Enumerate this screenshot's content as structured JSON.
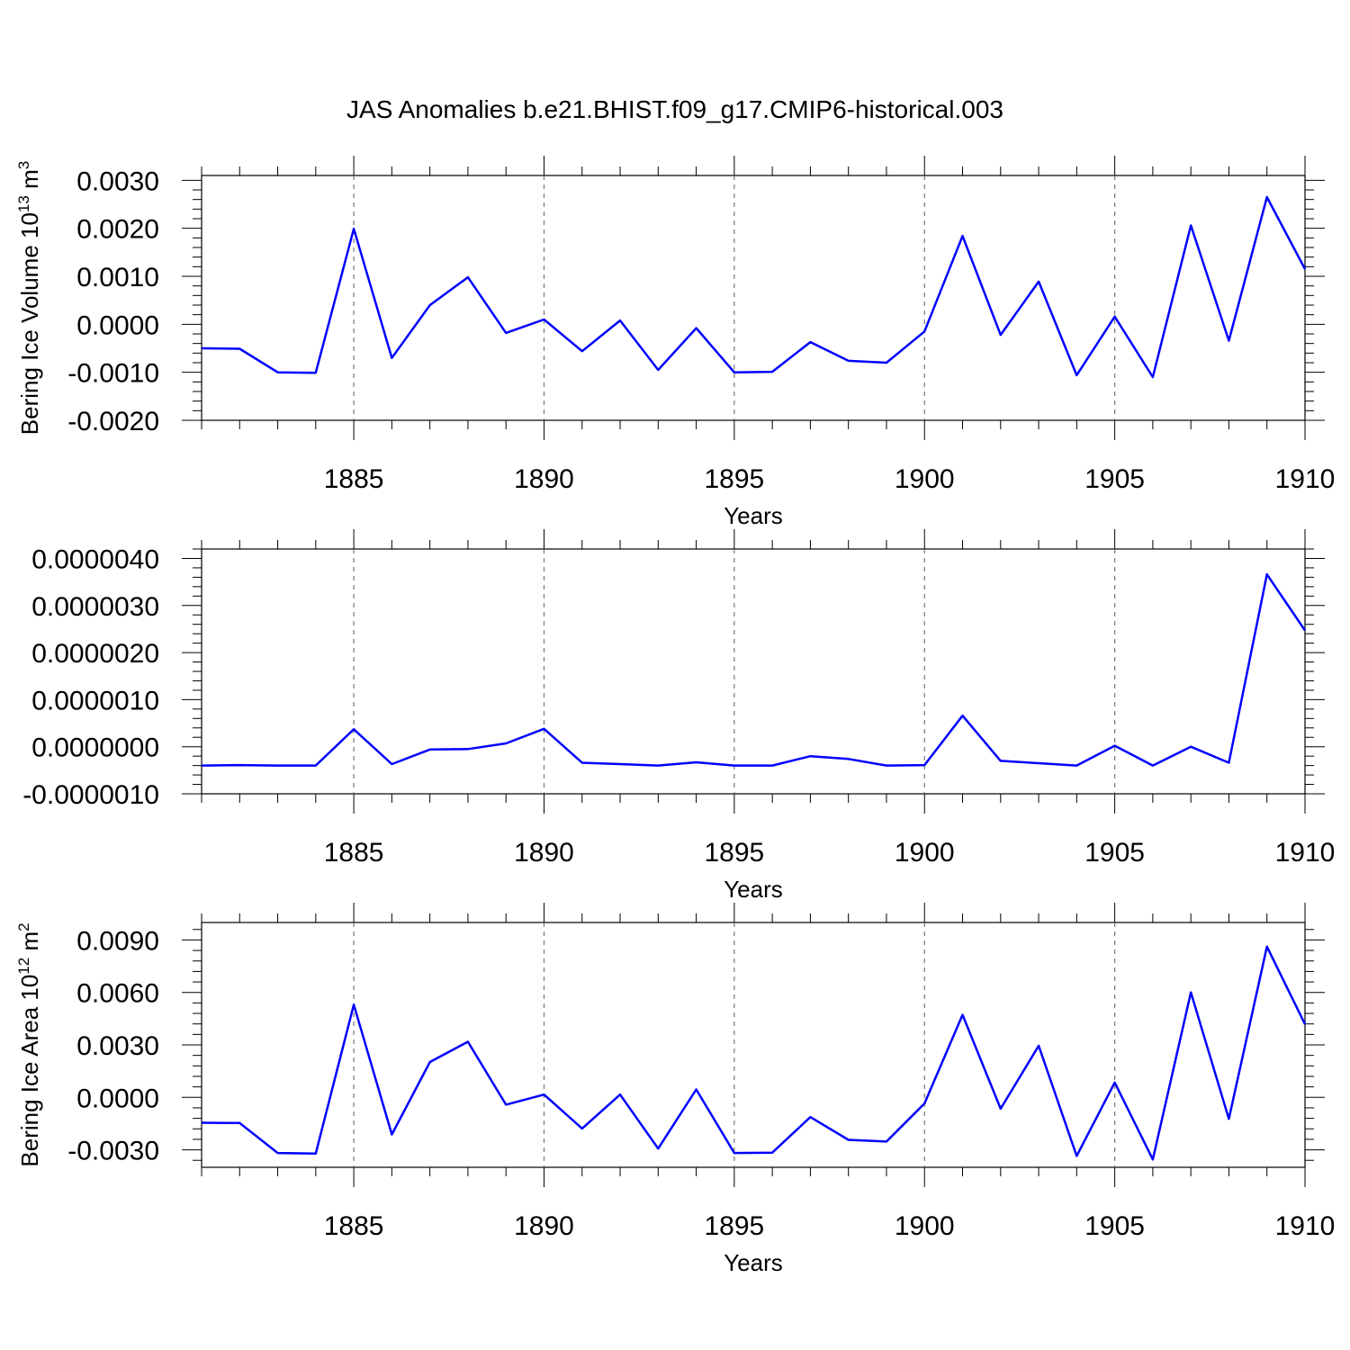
{
  "figure": {
    "title": "JAS Anomalies b.e21.BHIST.f09_g17.CMIP6-historical.003"
  },
  "colors": {
    "series": "#0000ff",
    "axis": "#000000",
    "grid": "#777777"
  },
  "chart_data": [
    {
      "type": "line",
      "title": "JAS Anomalies b.e21.BHIST.f09_g17.CMIP6-historical.003",
      "xlabel": "Years",
      "ylabel_main": "Bering Ice Volume 10",
      "ylabel_exp": "13",
      "ylabel_unit": " m",
      "ylabel_unit_exp": "3",
      "xlim": [
        1881,
        1910
      ],
      "ylim": [
        -0.002,
        0.0031
      ],
      "x_ticks": [
        1885,
        1890,
        1895,
        1900,
        1905,
        1910
      ],
      "x_tick_labels": [
        "1885",
        "1890",
        "1895",
        "1900",
        "1905",
        "1910"
      ],
      "y_ticks": [
        -0.002,
        -0.001,
        0.0,
        0.001,
        0.002,
        0.003
      ],
      "y_tick_labels": [
        "-0.0020",
        "-0.0010",
        "0.0000",
        "0.0010",
        "0.0020",
        "0.0030"
      ],
      "grid": "vertical dashed at major x ticks",
      "x": [
        1881,
        1882,
        1883,
        1884,
        1885,
        1886,
        1887,
        1888,
        1889,
        1890,
        1891,
        1892,
        1893,
        1894,
        1895,
        1896,
        1897,
        1898,
        1899,
        1900,
        1901,
        1902,
        1903,
        1904,
        1905,
        1906,
        1907,
        1908,
        1909,
        1910
      ],
      "series": [
        {
          "name": "Bering Ice Volume",
          "values": [
            -0.0005,
            -0.00051,
            -0.001,
            -0.00101,
            0.00199,
            -0.0007,
            0.0004,
            0.00098,
            -0.00018,
            0.0001,
            -0.00056,
            8e-05,
            -0.00095,
            -8e-05,
            -0.001,
            -0.00099,
            -0.00037,
            -0.00076,
            -0.0008,
            -0.00015,
            0.00184,
            -0.00022,
            0.00089,
            -0.00106,
            0.00016,
            -0.0011,
            0.00206,
            -0.00034,
            0.00265,
            0.00115
          ]
        }
      ]
    },
    {
      "type": "line",
      "xlabel": "Years",
      "xlim": [
        1881,
        1910
      ],
      "ylim": [
        -1e-06,
        4.2e-06
      ],
      "x_ticks": [
        1885,
        1890,
        1895,
        1900,
        1905,
        1910
      ],
      "x_tick_labels": [
        "1885",
        "1890",
        "1895",
        "1900",
        "1905",
        "1910"
      ],
      "y_ticks": [
        -1e-06,
        0.0,
        1e-06,
        2e-06,
        3e-06,
        4e-06
      ],
      "y_tick_labels": [
        "-0.0000010",
        "0.0000000",
        "0.0000010",
        "0.0000020",
        "0.0000030",
        "0.0000040"
      ],
      "grid": "vertical dashed at major x ticks",
      "x": [
        1881,
        1882,
        1883,
        1884,
        1885,
        1886,
        1887,
        1888,
        1889,
        1890,
        1891,
        1892,
        1893,
        1894,
        1895,
        1896,
        1897,
        1898,
        1899,
        1900,
        1901,
        1902,
        1903,
        1904,
        1905,
        1906,
        1907,
        1908,
        1909,
        1910
      ],
      "series": [
        {
          "name": "series",
          "values": [
            -4e-07,
            -3.9e-07,
            -4e-07,
            -4e-07,
            3.7e-07,
            -3.7e-07,
            -6e-08,
            -5e-08,
            7e-08,
            3.8e-07,
            -3.4e-07,
            -3.7e-07,
            -4e-07,
            -3.3e-07,
            -4e-07,
            -4e-07,
            -2e-07,
            -2.6e-07,
            -4e-07,
            -3.9e-07,
            6.6e-07,
            -3e-07,
            -3.5e-07,
            -4e-07,
            2e-08,
            -4e-07,
            0.0,
            -3.4e-07,
            3.66e-06,
            2.47e-06
          ]
        }
      ]
    },
    {
      "type": "line",
      "xlabel": "Years",
      "ylabel_main": "Bering Ice Area 10",
      "ylabel_exp": "12",
      "ylabel_unit": " m",
      "ylabel_unit_exp": "2",
      "xlim": [
        1881,
        1910
      ],
      "ylim": [
        -0.004,
        0.01
      ],
      "x_ticks": [
        1885,
        1890,
        1895,
        1900,
        1905,
        1910
      ],
      "x_tick_labels": [
        "1885",
        "1890",
        "1895",
        "1900",
        "1905",
        "1910"
      ],
      "y_ticks": [
        -0.003,
        0.0,
        0.003,
        0.006,
        0.009
      ],
      "y_tick_labels": [
        "-0.0030",
        "0.0000",
        "0.0030",
        "0.0060",
        "0.0090"
      ],
      "grid": "vertical dashed at major x ticks",
      "x": [
        1881,
        1882,
        1883,
        1884,
        1885,
        1886,
        1887,
        1888,
        1889,
        1890,
        1891,
        1892,
        1893,
        1894,
        1895,
        1896,
        1897,
        1898,
        1899,
        1900,
        1901,
        1902,
        1903,
        1904,
        1905,
        1906,
        1907,
        1908,
        1909,
        1910
      ],
      "series": [
        {
          "name": "Bering Ice Area",
          "values": [
            -0.00145,
            -0.00147,
            -0.00318,
            -0.00322,
            0.0053,
            -0.00212,
            0.00202,
            0.00318,
            -0.00042,
            0.00016,
            -0.00178,
            0.00016,
            -0.00293,
            0.00045,
            -0.00318,
            -0.00316,
            -0.00113,
            -0.00243,
            -0.00253,
            -0.00035,
            0.00472,
            -0.00065,
            0.00295,
            -0.00335,
            0.00085,
            -0.00355,
            0.006,
            -0.00123,
            0.00862,
            0.00418
          ]
        }
      ]
    }
  ]
}
